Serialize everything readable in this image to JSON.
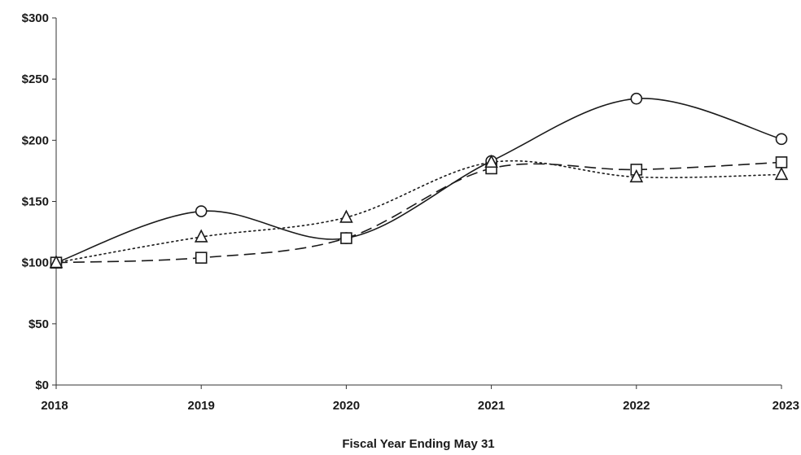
{
  "chart_data": {
    "type": "line",
    "title": "",
    "xlabel": "Fiscal Year Ending May 31",
    "ylabel": "",
    "categories": [
      "2018",
      "2019",
      "2020",
      "2021",
      "2022",
      "2023"
    ],
    "yticks": [
      0,
      50,
      100,
      150,
      200,
      250,
      300
    ],
    "ytick_labels": [
      "$0",
      "$50",
      "$100",
      "$150",
      "$200",
      "$250",
      "$300"
    ],
    "ylim": [
      0,
      300
    ],
    "grid": false,
    "legend": "none",
    "series": [
      {
        "marker": "circle",
        "dash": "solid",
        "values": [
          100,
          142,
          120,
          183,
          234,
          201
        ]
      },
      {
        "marker": "square",
        "dash": "dashed",
        "values": [
          100,
          104,
          120,
          177,
          176,
          182
        ]
      },
      {
        "marker": "triangle",
        "dash": "dotted",
        "values": [
          100,
          121,
          137,
          182,
          170,
          172
        ]
      }
    ]
  }
}
